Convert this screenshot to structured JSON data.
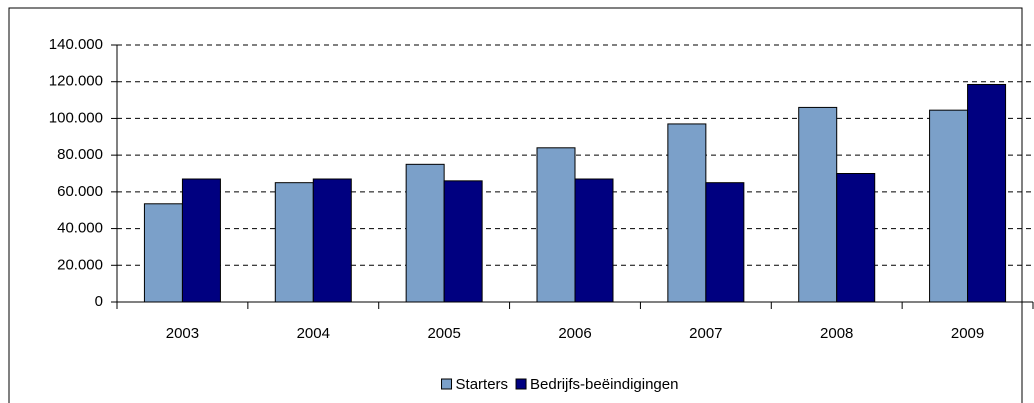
{
  "chart_data": {
    "type": "bar",
    "categories": [
      "2003",
      "2004",
      "2005",
      "2006",
      "2007",
      "2008",
      "2009"
    ],
    "series": [
      {
        "name": "Starters",
        "color": "#7ba0c9",
        "values": [
          53500,
          65000,
          75000,
          84000,
          97000,
          106000,
          104500
        ]
      },
      {
        "name": "Bedrijfs-beëindigingen",
        "color": "#000080",
        "values": [
          67000,
          67000,
          66000,
          67000,
          65000,
          70000,
          118500
        ]
      }
    ],
    "ylim": [
      0,
      140000
    ],
    "yticks": [
      0,
      {
        "value": 20000,
        "label": "20.000"
      },
      {
        "value": 40000,
        "label": "40.000"
      },
      {
        "value": 60000,
        "label": "60.000"
      },
      {
        "value": 80000,
        "label": "80.000"
      },
      {
        "value": 100000,
        "label": "100.000"
      },
      {
        "value": 120000,
        "label": "120.000"
      },
      {
        "value": 140000,
        "label": "140.000"
      }
    ],
    "grid": true,
    "legend": "bottom"
  }
}
